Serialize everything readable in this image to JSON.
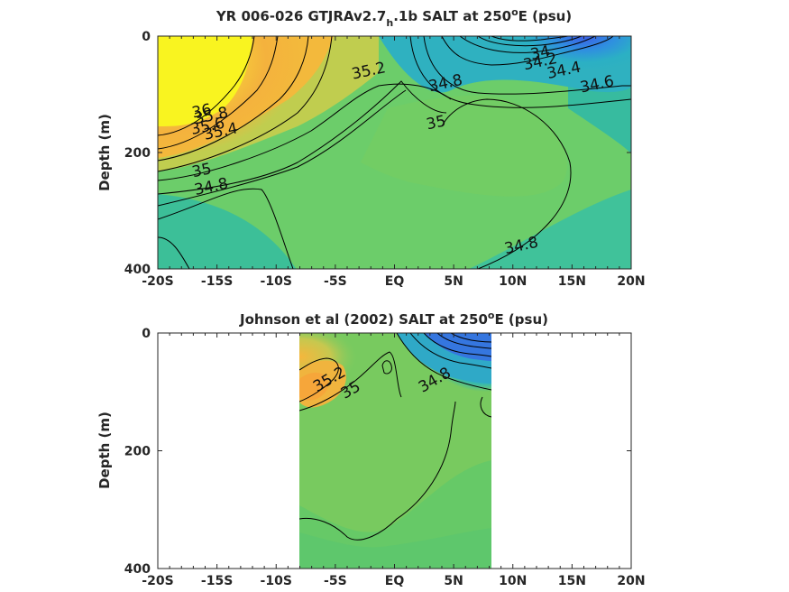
{
  "chart_data": [
    {
      "type": "heatmap",
      "title_main": "YR 006-026 GTJRAv2.7",
      "title_sub": "h",
      "title_mid": ".1b SALT at 250",
      "title_sup": "o",
      "title_end": "E (psu)",
      "ylabel": "Depth (m)",
      "x_ticks": [
        "-20S",
        "-15S",
        "-10S",
        "-5S",
        "EQ",
        "5N",
        "10N",
        "15N",
        "20N"
      ],
      "x_tick_values": [
        -20,
        -15,
        -10,
        -5,
        0,
        5,
        10,
        15,
        20
      ],
      "y_ticks": [
        "0",
        "200",
        "400"
      ],
      "y_tick_values": [
        0,
        200,
        400
      ],
      "xlim": [
        -20,
        20
      ],
      "ylim": [
        0,
        400
      ],
      "y_reversed": true,
      "contour_labels": [
        {
          "text": "36",
          "x": -16.2,
          "y": 137
        },
        {
          "text": "35.8",
          "x": -15.4,
          "y": 145
        },
        {
          "text": "35.6",
          "x": -15.7,
          "y": 163
        },
        {
          "text": "35.4",
          "x": -14.6,
          "y": 172
        },
        {
          "text": "35.2",
          "x": -2.1,
          "y": 68
        },
        {
          "text": "35",
          "x": -16.2,
          "y": 239
        },
        {
          "text": "35",
          "x": 3.6,
          "y": 157
        },
        {
          "text": "34.8",
          "x": -15.4,
          "y": 267
        },
        {
          "text": "34.8",
          "x": 4.4,
          "y": 89
        },
        {
          "text": "34.8",
          "x": 10.8,
          "y": 368
        },
        {
          "text": "34",
          "x": 12.4,
          "y": 37
        },
        {
          "text": "34.2",
          "x": 12.4,
          "y": 52
        },
        {
          "text": "34.4",
          "x": 14.4,
          "y": 67
        },
        {
          "text": "34.6",
          "x": 17.2,
          "y": 91
        }
      ]
    },
    {
      "type": "heatmap",
      "title_main": "Johnson et al (2002) SALT at 250",
      "title_sup": "o",
      "title_end": "E (psu)",
      "ylabel": "Depth (m)",
      "x_ticks": [
        "-20S",
        "-15S",
        "-10S",
        "-5S",
        "EQ",
        "5N",
        "10N",
        "15N",
        "20N"
      ],
      "x_tick_values": [
        -20,
        -15,
        -10,
        -5,
        0,
        5,
        10,
        15,
        20
      ],
      "y_ticks": [
        "0",
        "200",
        "400"
      ],
      "y_tick_values": [
        0,
        200,
        400
      ],
      "xlim": [
        -20,
        20
      ],
      "ylim": [
        0,
        400
      ],
      "y_reversed": true,
      "data_extent_x": [
        -8,
        8
      ],
      "contour_labels": [
        {
          "text": "35.2",
          "x": -5.3,
          "y": 86
        },
        {
          "text": "35",
          "x": -3.5,
          "y": 104
        },
        {
          "text": "34.8",
          "x": 3.6,
          "y": 87
        }
      ]
    }
  ]
}
